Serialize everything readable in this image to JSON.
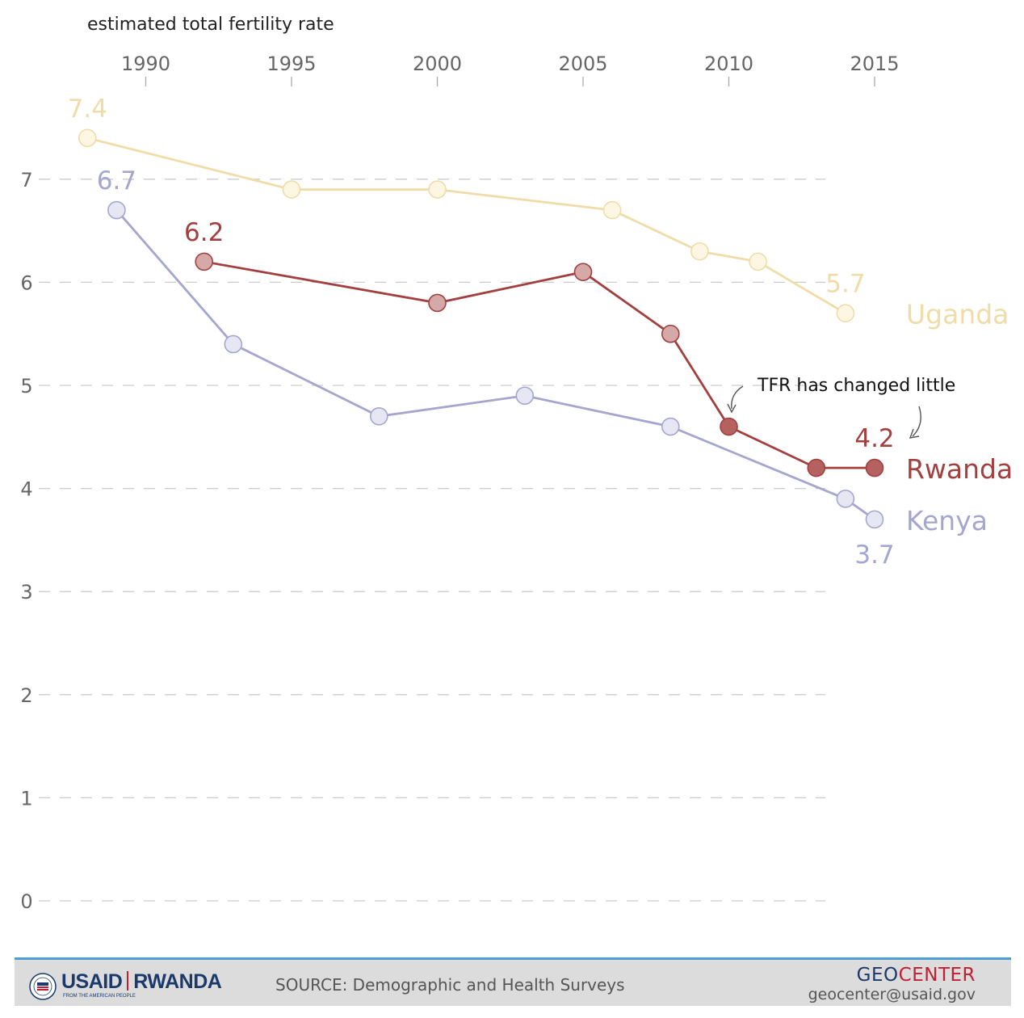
{
  "chart_data": {
    "type": "line",
    "ylabel": "estimated total fertility rate",
    "xlim": [
      1987.5,
      2017
    ],
    "ylim": [
      0,
      7.4
    ],
    "x_ticks": [
      1990,
      1995,
      2000,
      2005,
      2010,
      2015
    ],
    "y_ticks": [
      0,
      1,
      2,
      3,
      4,
      5,
      6,
      7
    ],
    "grid": "horizontal dashed",
    "legend": "right-end labels",
    "series": [
      {
        "name": "Uganda",
        "color": "#f0dca8",
        "fill": "#fdf6e3",
        "points": [
          [
            1988,
            7.4
          ],
          [
            1995,
            6.9
          ],
          [
            2000,
            6.9
          ],
          [
            2006,
            6.7
          ],
          [
            2009,
            6.3
          ],
          [
            2011,
            6.2
          ],
          [
            2014,
            5.7
          ]
        ],
        "start_label": "7.4",
        "end_label": "5.7"
      },
      {
        "name": "Rwanda",
        "color": "#a3403f",
        "fill": "#d4a9a7",
        "points": [
          [
            1992,
            6.2
          ],
          [
            2000,
            5.8
          ],
          [
            2005,
            6.1
          ],
          [
            2008,
            5.5
          ],
          [
            2010,
            4.6
          ],
          [
            2013,
            4.2
          ],
          [
            2015,
            4.2
          ]
        ],
        "start_label": "6.2",
        "end_label": "4.2"
      },
      {
        "name": "Kenya",
        "color": "#a5a6cf",
        "fill": "#e7e7f4",
        "points": [
          [
            1989,
            6.7
          ],
          [
            1993,
            5.4
          ],
          [
            1998,
            4.7
          ],
          [
            2003,
            4.9
          ],
          [
            2008,
            4.6
          ],
          [
            2014,
            3.9
          ],
          [
            2015,
            3.7
          ]
        ],
        "start_label": "6.7",
        "end_label": "3.7"
      }
    ],
    "annotations": [
      {
        "text": "TFR has changed little"
      }
    ]
  },
  "footer": {
    "logo_left": "USAID",
    "logo_right": "RWANDA",
    "logo_tagline": "FROM THE AMERICAN PEOPLE",
    "source": "SOURCE: Demographic and Health Surveys",
    "geo_part1": "GEO",
    "geo_part2": "CENTER",
    "geo_email": "geocenter@usaid.gov",
    "colors": {
      "geo_blue": "#1b3a6b",
      "geo_red": "#c21f32",
      "footer_bg": "#dcdcdc",
      "footer_rule": "#4b9fd5"
    }
  }
}
